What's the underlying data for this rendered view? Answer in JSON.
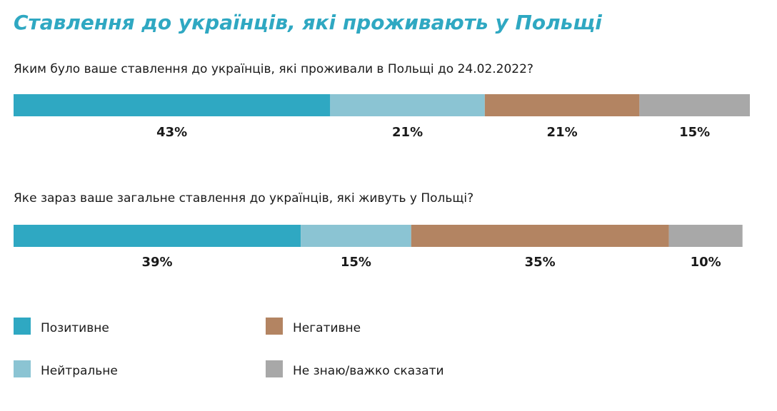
{
  "chart_data": {
    "type": "stacked_bar_100",
    "title": "Ставлення до українців, які проживають у Польщі",
    "categories": [
      "Яким було ваше ставлення до українців, які проживали в Польщі до 24.02.2022?",
      "Яке зараз ваше загальне ставлення до українців, які живуть у Польщі?"
    ],
    "xlim": [
      0,
      100
    ],
    "legend": "bottom",
    "series": [
      {
        "name": "Позитивне",
        "color": "#2fa8c2",
        "values": [
          43,
          39
        ],
        "value_labels": [
          "43%",
          "39%"
        ]
      },
      {
        "name": "Нейтральне",
        "color": "#8bc4d3",
        "values": [
          21,
          15
        ],
        "value_labels": [
          "21%",
          "15%"
        ]
      },
      {
        "name": "Негативне",
        "color": "#b38462",
        "values": [
          21,
          35
        ],
        "value_labels": [
          "21%",
          "35%"
        ]
      },
      {
        "name": "Не знаю/важко сказати",
        "color": "#a8a8a8",
        "values": [
          15,
          10
        ],
        "value_labels": [
          "15%",
          "10%"
        ]
      }
    ]
  }
}
